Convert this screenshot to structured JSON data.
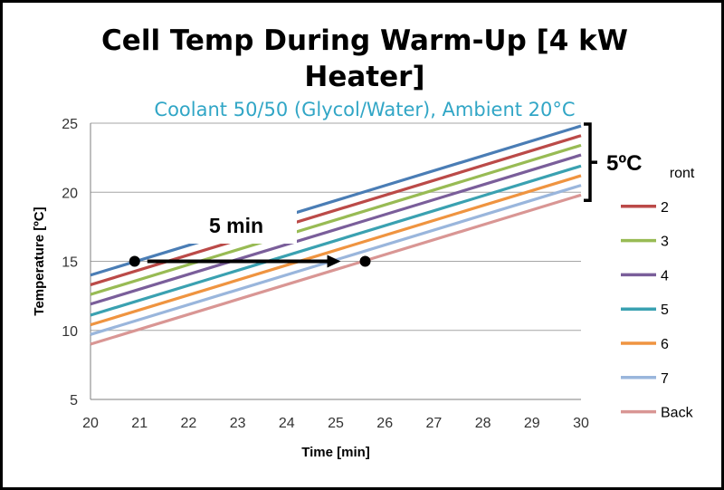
{
  "chart_data": {
    "type": "line",
    "title_line1": "Cell Temp During Warm-Up [4 kW",
    "title_line2": "Heater]",
    "subtitle": "Coolant 50/50 (Glycol/Water), Ambient 20°C",
    "xlabel": "Time [min]",
    "ylabel": "Temperature [ºC]",
    "xlim": [
      20,
      30
    ],
    "ylim": [
      5,
      25
    ],
    "xticks": [
      "20",
      "21",
      "22",
      "23",
      "24",
      "25",
      "26",
      "27",
      "28",
      "29",
      "30"
    ],
    "yticks": [
      "5",
      "10",
      "15",
      "20",
      "25"
    ],
    "grid": "horizontal",
    "legend_position": "right",
    "series": [
      {
        "name": "Front",
        "color": "#4a7db5",
        "x": [
          20,
          30
        ],
        "y": [
          14.0,
          24.8
        ]
      },
      {
        "name": "2",
        "color": "#bb4a48",
        "x": [
          20,
          30
        ],
        "y": [
          13.3,
          24.1
        ]
      },
      {
        "name": "3",
        "color": "#98bb54",
        "x": [
          20,
          30
        ],
        "y": [
          12.6,
          23.4
        ]
      },
      {
        "name": "4",
        "color": "#7a5e9a",
        "x": [
          20,
          30
        ],
        "y": [
          11.9,
          22.7
        ]
      },
      {
        "name": "5",
        "color": "#3aa1b1",
        "x": [
          20,
          30
        ],
        "y": [
          11.1,
          21.9
        ]
      },
      {
        "name": "6",
        "color": "#ef9440",
        "x": [
          20,
          30
        ],
        "y": [
          10.4,
          21.2
        ]
      },
      {
        "name": "7",
        "color": "#9ab6dc",
        "x": [
          20,
          30
        ],
        "y": [
          9.7,
          20.5
        ]
      },
      {
        "name": "Back",
        "color": "#d99694",
        "x": [
          20,
          30
        ],
        "y": [
          9.0,
          19.8
        ]
      }
    ],
    "annotations": {
      "time_arrow": {
        "label": "5 min",
        "from": [
          20.9,
          15
        ],
        "to": [
          25.6,
          15
        ]
      },
      "spread_bracket": {
        "label": "5ºC",
        "y_range": [
          19.8,
          24.8
        ]
      }
    }
  }
}
